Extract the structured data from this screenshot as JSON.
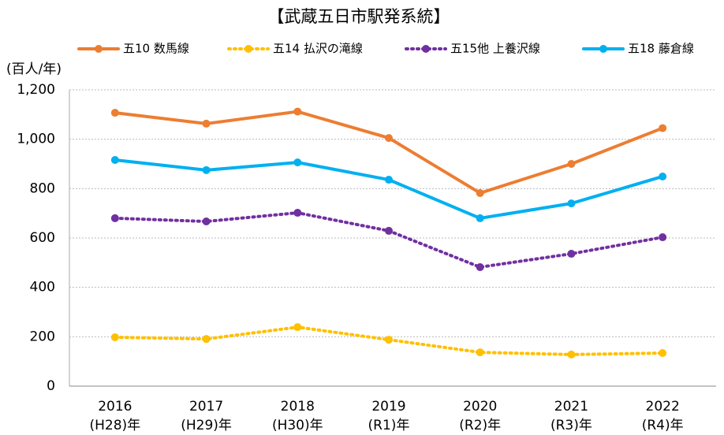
{
  "chart_data": {
    "type": "line",
    "title": "【武蔵五日市駅発系統】",
    "y_axis_label": "(百人/年)",
    "categories": [
      [
        "2016",
        "(H28)年"
      ],
      [
        "2017",
        "(H29)年"
      ],
      [
        "2018",
        "(H30)年"
      ],
      [
        "2019",
        "(R1)年"
      ],
      [
        "2020",
        "(R2)年"
      ],
      [
        "2021",
        "(R3)年"
      ],
      [
        "2022",
        "(R4)年"
      ]
    ],
    "series": [
      {
        "name": "五10 数馬線",
        "color": "#ed7d31",
        "style": "solid",
        "values": [
          1107,
          1063,
          1112,
          1005,
          782,
          900,
          1045
        ]
      },
      {
        "name": "五14 払沢の滝線",
        "color": "#ffc000",
        "style": "dotted",
        "values": [
          198,
          191,
          239,
          188,
          137,
          128,
          134
        ]
      },
      {
        "name": "五15他 上養沢線",
        "color": "#7030a0",
        "style": "dotted",
        "values": [
          680,
          667,
          702,
          629,
          482,
          536,
          603
        ]
      },
      {
        "name": "五18 藤倉線",
        "color": "#00b0f0",
        "style": "solid",
        "values": [
          916,
          875,
          906,
          836,
          680,
          740,
          849
        ]
      }
    ],
    "ylim": [
      0,
      1200
    ],
    "yticks": [
      0,
      200,
      400,
      600,
      800,
      {
        "value": 1000,
        "label": "1,000"
      },
      {
        "value": 1200,
        "label": "1,200"
      }
    ],
    "grid": true,
    "legend": "top"
  }
}
